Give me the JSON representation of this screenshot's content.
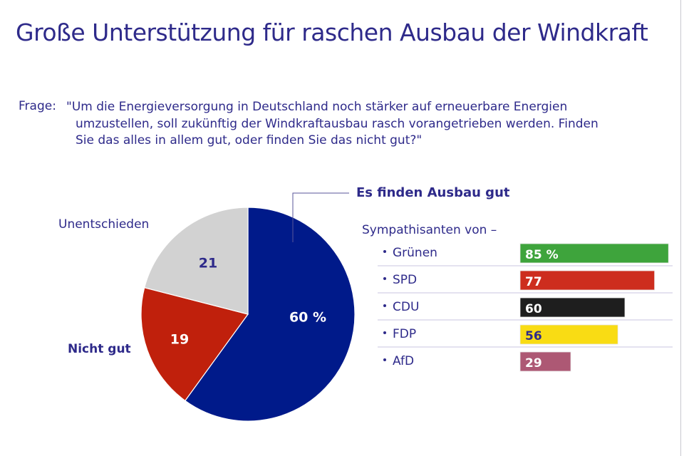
{
  "title": "Große Unterstützung für raschen Ausbau der Windkraft",
  "question": {
    "label": "Frage:",
    "lines": [
      "\"Um die Energieversorgung in Deutschland noch stärker auf erneuerbare Energien",
      "umzustellen, soll zukünftig der Windkraftausbau rasch vorangetrieben werden. Finden",
      "Sie das alles in allem gut, oder finden Sie das nicht gut?\""
    ]
  },
  "chart_data": [
    {
      "type": "pie",
      "slices": [
        {
          "label": "Es finden Ausbau gut",
          "value": 60,
          "value_label": "60 %",
          "color": "#001a8a",
          "label_color": "#ffffff"
        },
        {
          "label": "Nicht gut",
          "value": 19,
          "value_label": "19",
          "color": "#c0200c",
          "label_color": "#ffffff"
        },
        {
          "label": "Unentschieden",
          "value": 21,
          "value_label": "21",
          "color": "#d2d2d2",
          "label_color": "#2e2a8a"
        }
      ]
    },
    {
      "type": "bar",
      "orientation": "horizontal",
      "title": "Es finden Ausbau gut",
      "subtitle": "Sympathisanten von –",
      "categories": [
        "Grünen",
        "SPD",
        "CDU",
        "FDP",
        "AfD"
      ],
      "values": [
        85,
        77,
        60,
        56,
        29
      ],
      "value_labels": [
        "85 %",
        "77",
        "60",
        "56",
        "29"
      ],
      "colors": [
        "#3ea43c",
        "#cd2d1e",
        "#1e1e1e",
        "#f9dc14",
        "#ad5874"
      ],
      "label_colors": [
        "#ffffff",
        "#ffffff",
        "#ffffff",
        "#2e2a8a",
        "#ffffff"
      ]
    }
  ]
}
